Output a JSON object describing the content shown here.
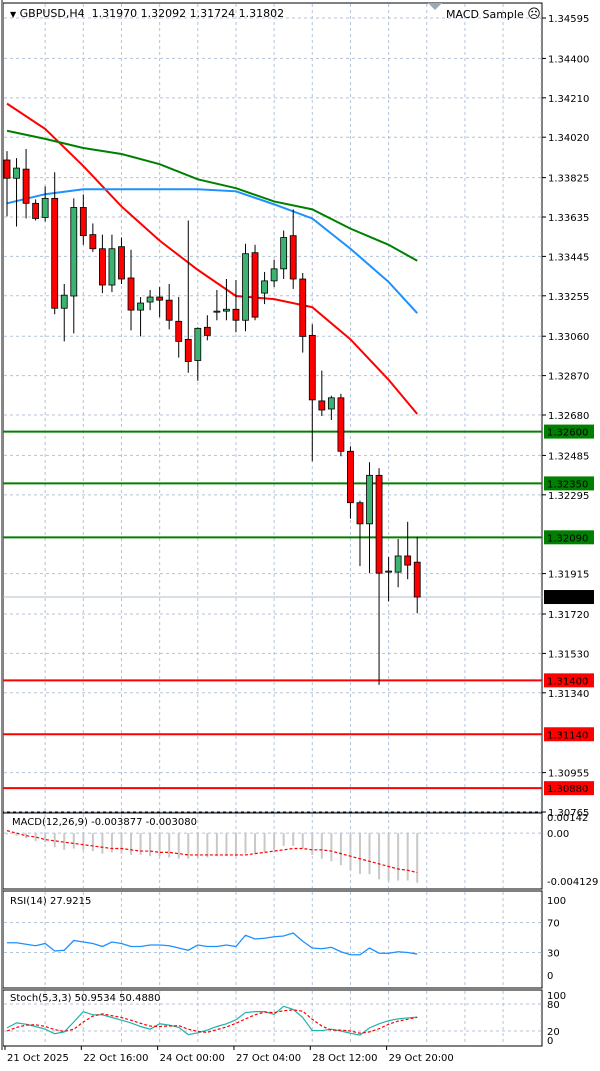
{
  "header": {
    "symbol_label": "GBPUSD,H4",
    "ohlc": "1.31970 1.32092 1.31724 1.31802",
    "expert_name": "MACD Sample",
    "expert_icon": "frown-face-icon"
  },
  "colors": {
    "bull": "#3cb371",
    "bear": "#ff0000",
    "ma_fast": "#ff0000",
    "ma_mid": "#1e90ff",
    "ma_slow": "#008000",
    "resistance": "#008000",
    "support": "#ff0000",
    "grid": "#b4c3d6",
    "rsi": "#1e90ff",
    "stoch_main": "#20b2aa",
    "stoch_signal": "#ff0000"
  },
  "chart_data": [
    {
      "type": "candlestick",
      "title": "GBPUSD,H4",
      "price_axis_ticks": [
        "1.34595",
        "1.34400",
        "1.34210",
        "1.34020",
        "1.33825",
        "1.33635",
        "1.33445",
        "1.33255",
        "1.33060",
        "1.32870",
        "1.32680",
        "1.32485",
        "1.32295",
        "1.31915",
        "1.31720",
        "1.31530",
        "1.31340",
        "1.30955",
        "1.30765"
      ],
      "ylim": [
        1.30765,
        1.34595
      ],
      "date_labels": [
        {
          "index": 0,
          "text": "21 Oct 2025"
        },
        {
          "index": 8,
          "text": "22 Oct 16:00"
        },
        {
          "index": 16,
          "text": "24 Oct 00:00"
        },
        {
          "index": 24,
          "text": "27 Oct 04:00"
        },
        {
          "index": 32,
          "text": "28 Oct 12:00"
        },
        {
          "index": 40,
          "text": "29 Oct 20:00"
        }
      ],
      "candles": [
        [
          1.3391,
          1.33953,
          1.33638,
          1.33822
        ],
        [
          1.33822,
          1.33919,
          1.33589,
          1.33871
        ],
        [
          1.33866,
          1.33963,
          1.33628,
          1.33701
        ],
        [
          1.33701,
          1.3372,
          1.33618,
          1.33628
        ],
        [
          1.33633,
          1.33783,
          1.33613,
          1.33725
        ],
        [
          1.33725,
          1.33851,
          1.33166,
          1.33195
        ],
        [
          1.33195,
          1.33312,
          1.33035,
          1.33258
        ],
        [
          1.33254,
          1.33725,
          1.33074,
          1.33681
        ],
        [
          1.33681,
          1.33744,
          1.33501,
          1.33545
        ],
        [
          1.3355,
          1.33604,
          1.33467,
          1.33482
        ],
        [
          1.33482,
          1.3355,
          1.33268,
          1.33307
        ],
        [
          1.33307,
          1.3355,
          1.33273,
          1.33482
        ],
        [
          1.33492,
          1.33536,
          1.33312,
          1.33336
        ],
        [
          1.33341,
          1.33477,
          1.33088,
          1.33186
        ],
        [
          1.33186,
          1.33249,
          1.33059,
          1.3322
        ],
        [
          1.33225,
          1.33283,
          1.33186,
          1.33249
        ],
        [
          1.33249,
          1.33297,
          1.33152,
          1.33234
        ],
        [
          1.33234,
          1.33312,
          1.33093,
          1.33137
        ],
        [
          1.33132,
          1.33249,
          1.32957,
          1.33035
        ],
        [
          1.33045,
          1.33618,
          1.32884,
          1.32938
        ],
        [
          1.32943,
          1.33103,
          1.32845,
          1.33098
        ],
        [
          1.33103,
          1.33161,
          1.3304,
          1.33064
        ],
        [
          1.33176,
          1.33283,
          1.33137,
          1.33181
        ],
        [
          1.33181,
          1.33336,
          1.33137,
          1.3319
        ],
        [
          1.3319,
          1.33331,
          1.33079,
          1.33137
        ],
        [
          1.33137,
          1.33506,
          1.33084,
          1.33458
        ],
        [
          1.33463,
          1.33501,
          1.33137,
          1.33152
        ],
        [
          1.33268,
          1.3337,
          1.33215,
          1.33327
        ],
        [
          1.33327,
          1.33429,
          1.33297,
          1.33385
        ],
        [
          1.33385,
          1.3357,
          1.33336,
          1.33536
        ],
        [
          1.33545,
          1.33672,
          1.33288,
          1.33336
        ],
        [
          1.33336,
          1.33365,
          1.32981,
          1.33059
        ],
        [
          1.33064,
          1.33118,
          1.32457,
          1.32753
        ],
        [
          1.32748,
          1.32894,
          1.32675,
          1.32704
        ],
        [
          1.32709,
          1.32773,
          1.32656,
          1.32763
        ],
        [
          1.32763,
          1.32782,
          1.32481,
          1.32505
        ],
        [
          1.32505,
          1.32529,
          1.3218,
          1.32257
        ],
        [
          1.32257,
          1.32267,
          1.31951,
          1.32155
        ],
        [
          1.32155,
          1.32452,
          1.31917,
          1.32389
        ],
        [
          1.32389,
          1.32423,
          1.31378,
          1.31917
        ],
        [
          1.31922,
          1.31995,
          1.31781,
          1.31927
        ],
        [
          1.31922,
          1.32082,
          1.31849,
          1.32
        ],
        [
          1.32,
          1.32165,
          1.31888,
          1.31956
        ],
        [
          1.3197,
          1.32092,
          1.31724,
          1.31802
        ]
      ],
      "moving_averages": [
        {
          "color": "#ff0000",
          "points": [
            [
              0,
              1.34182
            ],
            [
              4,
              1.3406
            ],
            [
              8,
              1.33881
            ],
            [
              12,
              1.33686
            ],
            [
              16,
              1.33521
            ],
            [
              20,
              1.3338
            ],
            [
              24,
              1.33254
            ],
            [
              28,
              1.33239
            ],
            [
              32,
              1.332
            ],
            [
              36,
              1.33045
            ],
            [
              40,
              1.3285
            ],
            [
              43,
              1.32685
            ]
          ]
        },
        {
          "color": "#1e90ff",
          "points": [
            [
              0,
              1.33701
            ],
            [
              4,
              1.33745
            ],
            [
              8,
              1.33769
            ],
            [
              12,
              1.33769
            ],
            [
              16,
              1.33769
            ],
            [
              20,
              1.33769
            ],
            [
              24,
              1.33759
            ],
            [
              28,
              1.33696
            ],
            [
              32,
              1.33628
            ],
            [
              36,
              1.33482
            ],
            [
              40,
              1.33322
            ],
            [
              43,
              1.33171
            ]
          ]
        },
        {
          "color": "#008000",
          "points": [
            [
              0,
              1.34051
            ],
            [
              4,
              1.34012
            ],
            [
              8,
              1.33968
            ],
            [
              12,
              1.33939
            ],
            [
              16,
              1.3389
            ],
            [
              20,
              1.33817
            ],
            [
              24,
              1.33774
            ],
            [
              28,
              1.3371
            ],
            [
              32,
              1.33672
            ],
            [
              36,
              1.33579
            ],
            [
              40,
              1.33501
            ],
            [
              43,
              1.33424
            ]
          ]
        }
      ],
      "levels": [
        {
          "price": 1.326,
          "label": "1.32600",
          "kind": "resistance"
        },
        {
          "price": 1.3235,
          "label": "1.32350",
          "kind": "resistance"
        },
        {
          "price": 1.3209,
          "label": "1.32090",
          "kind": "resistance"
        },
        {
          "price": 1.314,
          "label": "1.31400",
          "kind": "support"
        },
        {
          "price": 1.3114,
          "label": "1.31140",
          "kind": "support"
        },
        {
          "price": 1.3088,
          "label": "1.30880",
          "kind": "support"
        }
      ],
      "current_price": {
        "price": 1.31802,
        "label": "1.31802"
      }
    },
    {
      "type": "bar+line",
      "title": "MACD(12,26,9) -0.003877 -0.003080",
      "axis_ticks": [
        "0.00142",
        "0.00",
        "-0.004129"
      ],
      "ylim": [
        -0.004129,
        0.00142
      ],
      "main": [
        -0.0001,
        -0.0002,
        -0.0004,
        -0.0006,
        -0.0007,
        -0.0011,
        -0.0013,
        -0.0012,
        -0.0013,
        -0.0014,
        -0.0016,
        -0.0015,
        -0.0016,
        -0.0017,
        -0.0017,
        -0.0018,
        -0.0018,
        -0.0019,
        -0.002,
        -0.002,
        -0.0019,
        -0.0019,
        -0.0018,
        -0.0018,
        -0.0018,
        -0.0016,
        -0.0016,
        -0.0015,
        -0.0013,
        -0.001,
        -0.001,
        -0.0012,
        -0.0017,
        -0.002,
        -0.0022,
        -0.0025,
        -0.0029,
        -0.0032,
        -0.0032,
        -0.0036,
        -0.0037,
        -0.0037,
        -0.0037,
        -0.003877
      ],
      "signal": [
        0.0002,
        0.0,
        -0.0002,
        -0.0003,
        -0.0005,
        -0.0006,
        -0.0007,
        -0.0008,
        -0.0009,
        -0.001,
        -0.0011,
        -0.0012,
        -0.0012,
        -0.0013,
        -0.0014,
        -0.0014,
        -0.0015,
        -0.0015,
        -0.0016,
        -0.0017,
        -0.0017,
        -0.0017,
        -0.0017,
        -0.0017,
        -0.0017,
        -0.0017,
        -0.0016,
        -0.0015,
        -0.0014,
        -0.0013,
        -0.0012,
        -0.0012,
        -0.0013,
        -0.0013,
        -0.0014,
        -0.0016,
        -0.0018,
        -0.002,
        -0.0022,
        -0.0024,
        -0.0026,
        -0.0028,
        -0.0029,
        -0.00308
      ]
    },
    {
      "type": "line",
      "title": "RSI(14) 27.9215",
      "axis_ticks": [
        "100",
        "70",
        "30",
        "0"
      ],
      "ylim": [
        0,
        100
      ],
      "values": [
        43,
        43,
        41,
        39,
        42,
        32,
        33,
        46,
        44,
        42,
        38,
        44,
        42,
        38,
        38,
        40,
        40,
        39,
        36,
        33,
        40,
        38,
        38,
        40,
        38,
        53,
        48,
        49,
        51,
        52,
        56,
        45,
        36,
        35,
        37,
        31,
        27,
        27,
        36,
        29,
        29,
        31,
        30,
        27.9215
      ]
    },
    {
      "type": "line",
      "title": "Stoch(5,3,3) 50.9534 50.4880",
      "axis_ticks": [
        "100",
        "80",
        "20",
        "0"
      ],
      "ylim": [
        0,
        100
      ],
      "main": [
        27,
        38,
        35,
        30,
        24,
        14,
        18,
        40,
        63,
        56,
        56,
        50,
        44,
        38,
        30,
        24,
        36,
        33,
        28,
        12,
        16,
        22,
        30,
        36,
        45,
        61,
        63,
        63,
        57,
        75,
        68,
        50,
        21,
        21,
        24,
        20,
        15,
        11,
        27,
        36,
        43,
        47,
        49,
        50.9534
      ],
      "signal": [
        20,
        28,
        33,
        34,
        30,
        23,
        19,
        24,
        40,
        53,
        58,
        54,
        50,
        44,
        37,
        31,
        30,
        31,
        32,
        24,
        19,
        17,
        23,
        29,
        37,
        47,
        56,
        62,
        61,
        65,
        67,
        64,
        46,
        31,
        22,
        22,
        20,
        15,
        18,
        25,
        35,
        42,
        46,
        50.488
      ]
    }
  ]
}
